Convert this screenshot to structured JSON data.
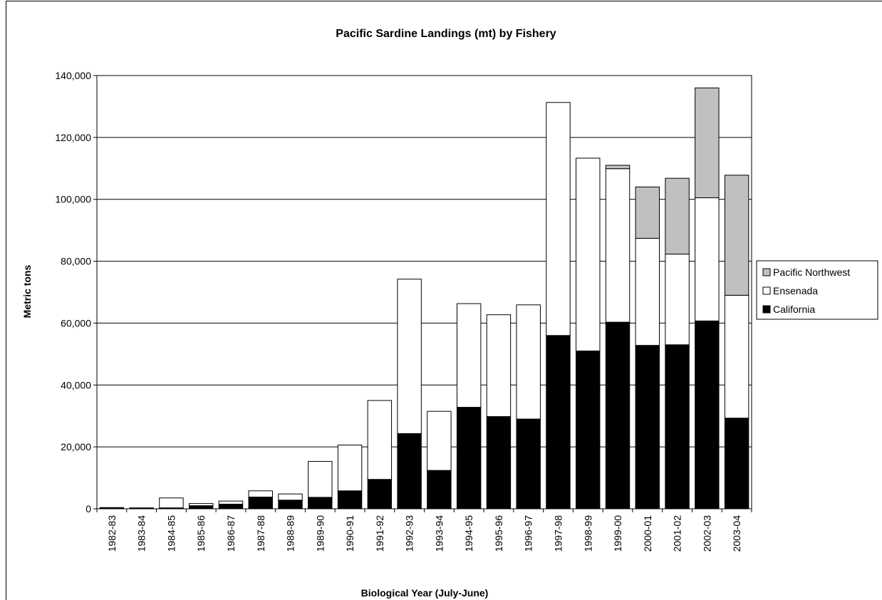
{
  "chart_data": {
    "type": "bar",
    "stacked": true,
    "title": "Pacific Sardine Landings (mt) by Fishery",
    "xlabel": "Biological Year (July-June)",
    "ylabel": "Metric tons",
    "ylim": [
      0,
      140000
    ],
    "yticks": [
      0,
      20000,
      40000,
      60000,
      80000,
      100000,
      120000,
      140000
    ],
    "ytick_labels": [
      "0",
      "20,000",
      "40,000",
      "60,000",
      "80,000",
      "100,000",
      "120,000",
      "140,000"
    ],
    "grid": "horizontal",
    "legend_position": "right",
    "categories": [
      "1982-83",
      "1983-84",
      "1984-85",
      "1985-86",
      "1986-87",
      "1987-88",
      "1988-89",
      "1989-90",
      "1990-91",
      "1991-92",
      "1992-93",
      "1993-94",
      "1994-95",
      "1995-96",
      "1996-97",
      "1997-98",
      "1998-99",
      "1999-00",
      "2000-01",
      "2001-02",
      "2002-03",
      "2003-04"
    ],
    "series": [
      {
        "name": "California",
        "color": "#000000",
        "values": [
          400,
          200,
          300,
          1000,
          1500,
          3800,
          2800,
          3700,
          5800,
          9500,
          24300,
          12400,
          32800,
          29800,
          29000,
          56000,
          51000,
          60300,
          52800,
          53000,
          60700,
          29300
        ]
      },
      {
        "name": "Ensenada",
        "color": "#ffffff",
        "values": [
          0,
          100,
          3200,
          700,
          1000,
          2000,
          2000,
          11600,
          14800,
          25500,
          49900,
          19100,
          33500,
          32900,
          36900,
          75300,
          62300,
          49600,
          34600,
          29300,
          39800,
          39700
        ]
      },
      {
        "name": "Pacific Northwest",
        "color": "#c0c0c0",
        "values": [
          0,
          0,
          0,
          0,
          0,
          0,
          0,
          0,
          0,
          0,
          0,
          0,
          0,
          0,
          0,
          0,
          0,
          1100,
          16600,
          24500,
          35500,
          38800
        ]
      }
    ],
    "legend_order": [
      "Pacific Northwest",
      "Ensenada",
      "California"
    ]
  }
}
